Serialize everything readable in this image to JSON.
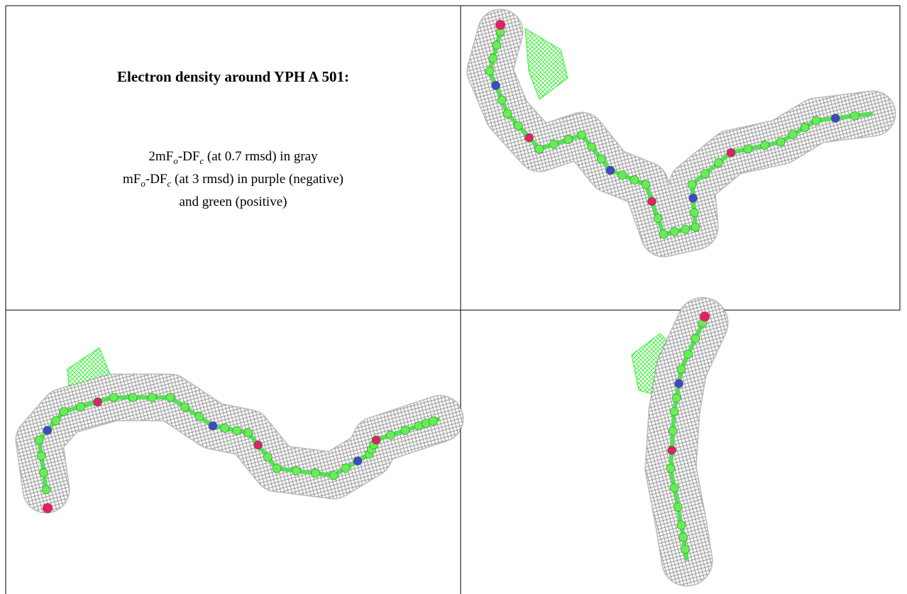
{
  "caption": {
    "title": "Electron density around YPH A 501:",
    "lines": [
      [
        {
          "text": "2mF",
          "sub": false
        },
        {
          "text": "o",
          "sub": true
        },
        {
          "text": "-DF",
          "sub": false
        },
        {
          "text": "c",
          "sub": true
        },
        {
          "text": " (at 0.7 rmsd) in gray",
          "sub": false
        }
      ],
      [
        {
          "text": "mF",
          "sub": false
        },
        {
          "text": "o",
          "sub": true
        },
        {
          "text": "-DF",
          "sub": false
        },
        {
          "text": "c",
          "sub": true
        },
        {
          "text": " (at 3 rmsd) in purple (negative)",
          "sub": false
        }
      ],
      [
        {
          "text": "and green (positive)",
          "sub": false
        }
      ]
    ]
  }
}
